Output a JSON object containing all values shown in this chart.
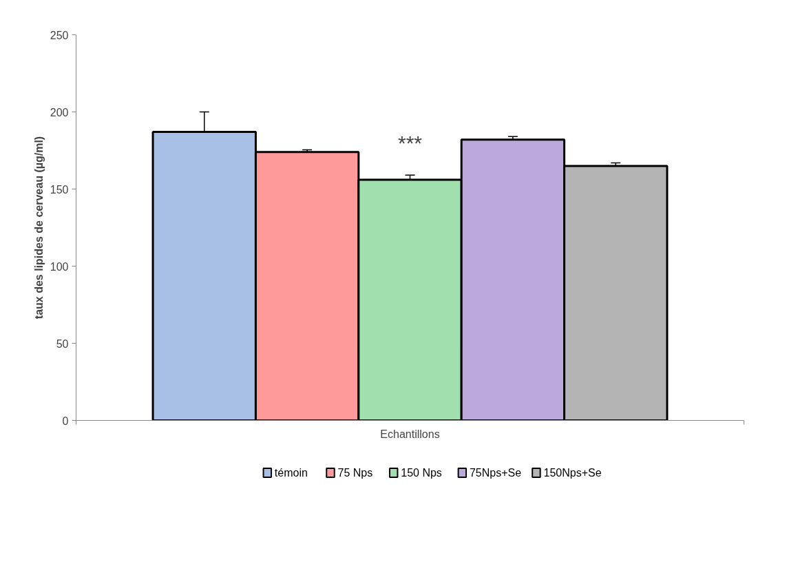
{
  "chart_data": {
    "type": "bar",
    "xlabel": "Echantillons",
    "ylabel": "taux des lipides de cerveau (µg/ml)",
    "categories": [
      null
    ],
    "series": [
      {
        "name": "témoin",
        "color": "#a9c0e6",
        "values": [
          187
        ],
        "errors": [
          [
            187,
            200
          ]
        ]
      },
      {
        "name": "75 Nps",
        "color": "#ff9a9a",
        "values": [
          174
        ],
        "errors": [
          [
            174,
            175.5
          ]
        ]
      },
      {
        "name": "150 Nps",
        "color": "#9fe0ae",
        "values": [
          156
        ],
        "errors": [
          [
            156,
            159
          ]
        ]
      },
      {
        "name": "75Nps+Se",
        "color": "#bca8da",
        "values": [
          182
        ],
        "errors": [
          [
            182,
            184
          ]
        ]
      },
      {
        "name": "150Nps+Se",
        "color": "#b4b4b4",
        "values": [
          165
        ],
        "errors": [
          [
            165,
            167
          ]
        ]
      }
    ],
    "ylim": [
      0,
      250
    ],
    "yticks": [
      0,
      50,
      100,
      150,
      200,
      250
    ],
    "grid": false,
    "legend": "bottom",
    "annotations": [
      "***"
    ]
  }
}
